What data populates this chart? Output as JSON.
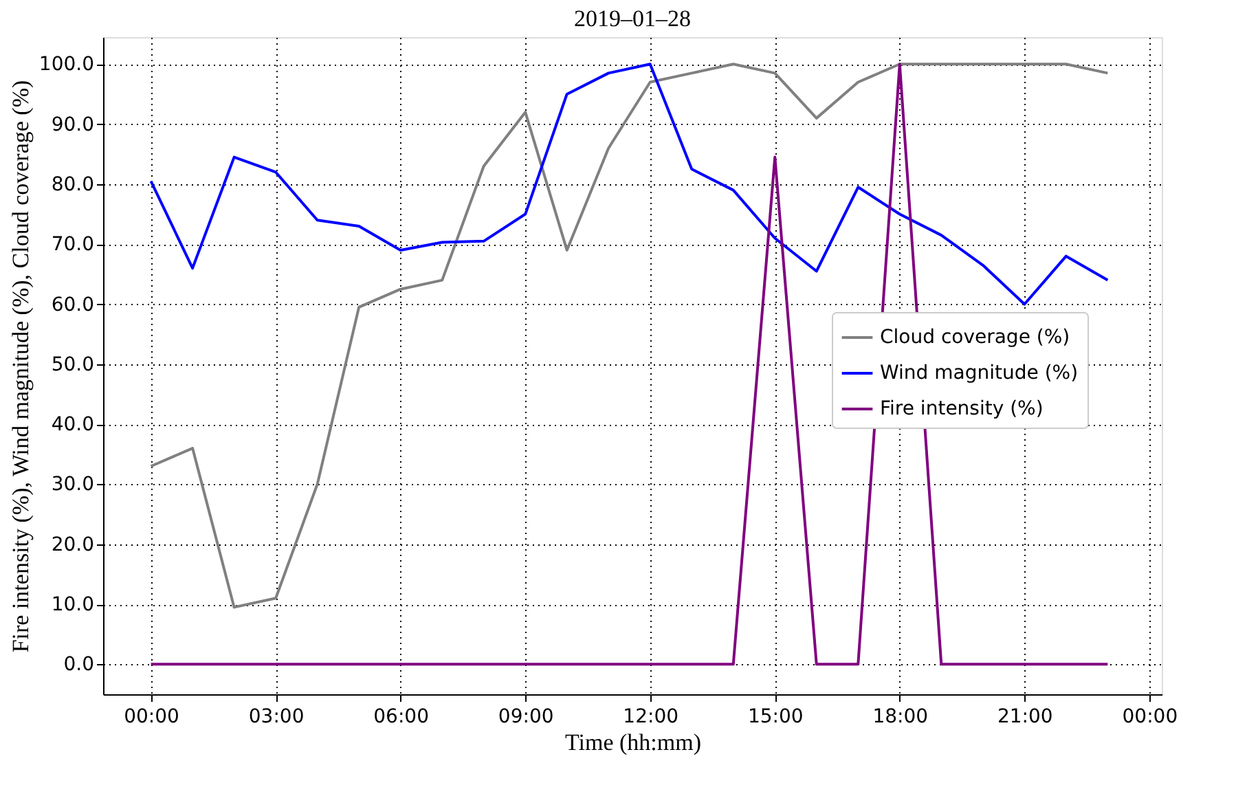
{
  "chart_data": {
    "type": "line",
    "title": "2019–01–28",
    "xlabel": "Time (hh:mm)",
    "ylabel": "Fire intensity (%), Wind magnitude (%), Cloud coverage (%)",
    "x": [
      0,
      1,
      2,
      3,
      4,
      5,
      6,
      7,
      8,
      9,
      10,
      11,
      12,
      13,
      14,
      15,
      16,
      17,
      18,
      19,
      20,
      21,
      22,
      23
    ],
    "series": [
      {
        "name": "Cloud coverage (%)",
        "color": "#808080",
        "values": [
          33,
          36,
          9.5,
          11,
          30,
          59.5,
          62.5,
          64,
          83,
          92,
          69,
          86,
          97,
          98.5,
          100,
          98.5,
          91,
          97,
          100,
          100,
          100,
          100,
          100,
          98.5
        ]
      },
      {
        "name": "Wind magnitude (%)",
        "color": "#0000ff",
        "values": [
          80.5,
          66,
          84.5,
          82,
          74,
          73,
          69,
          70.3,
          70.5,
          75,
          95,
          98.5,
          100,
          82.5,
          79,
          71,
          65.5,
          79.5,
          75,
          71.5,
          66.5,
          60,
          68,
          64
        ]
      },
      {
        "name": "Fire intensity (%)",
        "color": "#800080",
        "values": [
          0,
          0,
          0,
          0,
          0,
          0,
          0,
          0,
          0,
          0,
          0,
          0,
          0,
          0,
          0,
          84.5,
          0,
          0,
          100,
          0,
          0,
          0,
          0,
          0
        ]
      }
    ],
    "xlim": [
      -1.15,
      24.3
    ],
    "xticks": [
      {
        "value": 0,
        "label": "00:00"
      },
      {
        "value": 3,
        "label": "03:00"
      },
      {
        "value": 6,
        "label": "06:00"
      },
      {
        "value": 9,
        "label": "09:00"
      },
      {
        "value": 12,
        "label": "12:00"
      },
      {
        "value": 15,
        "label": "15:00"
      },
      {
        "value": 18,
        "label": "18:00"
      },
      {
        "value": 21,
        "label": "21:00"
      },
      {
        "value": 24,
        "label": "00:00"
      }
    ],
    "ylim": [
      -5,
      104.5
    ],
    "yticks": [
      {
        "value": 0,
        "label": "0.0"
      },
      {
        "value": 10,
        "label": "10.0"
      },
      {
        "value": 20,
        "label": "20.0"
      },
      {
        "value": 30,
        "label": "30.0"
      },
      {
        "value": 40,
        "label": "40.0"
      },
      {
        "value": 50,
        "label": "50.0"
      },
      {
        "value": 60,
        "label": "60.0"
      },
      {
        "value": 70,
        "label": "70.0"
      },
      {
        "value": 80,
        "label": "80.0"
      },
      {
        "value": 90,
        "label": "90.0"
      },
      {
        "value": 100,
        "label": "100.0"
      }
    ],
    "grid": true,
    "legend": "right",
    "marker": "none",
    "line_style": "solid"
  }
}
